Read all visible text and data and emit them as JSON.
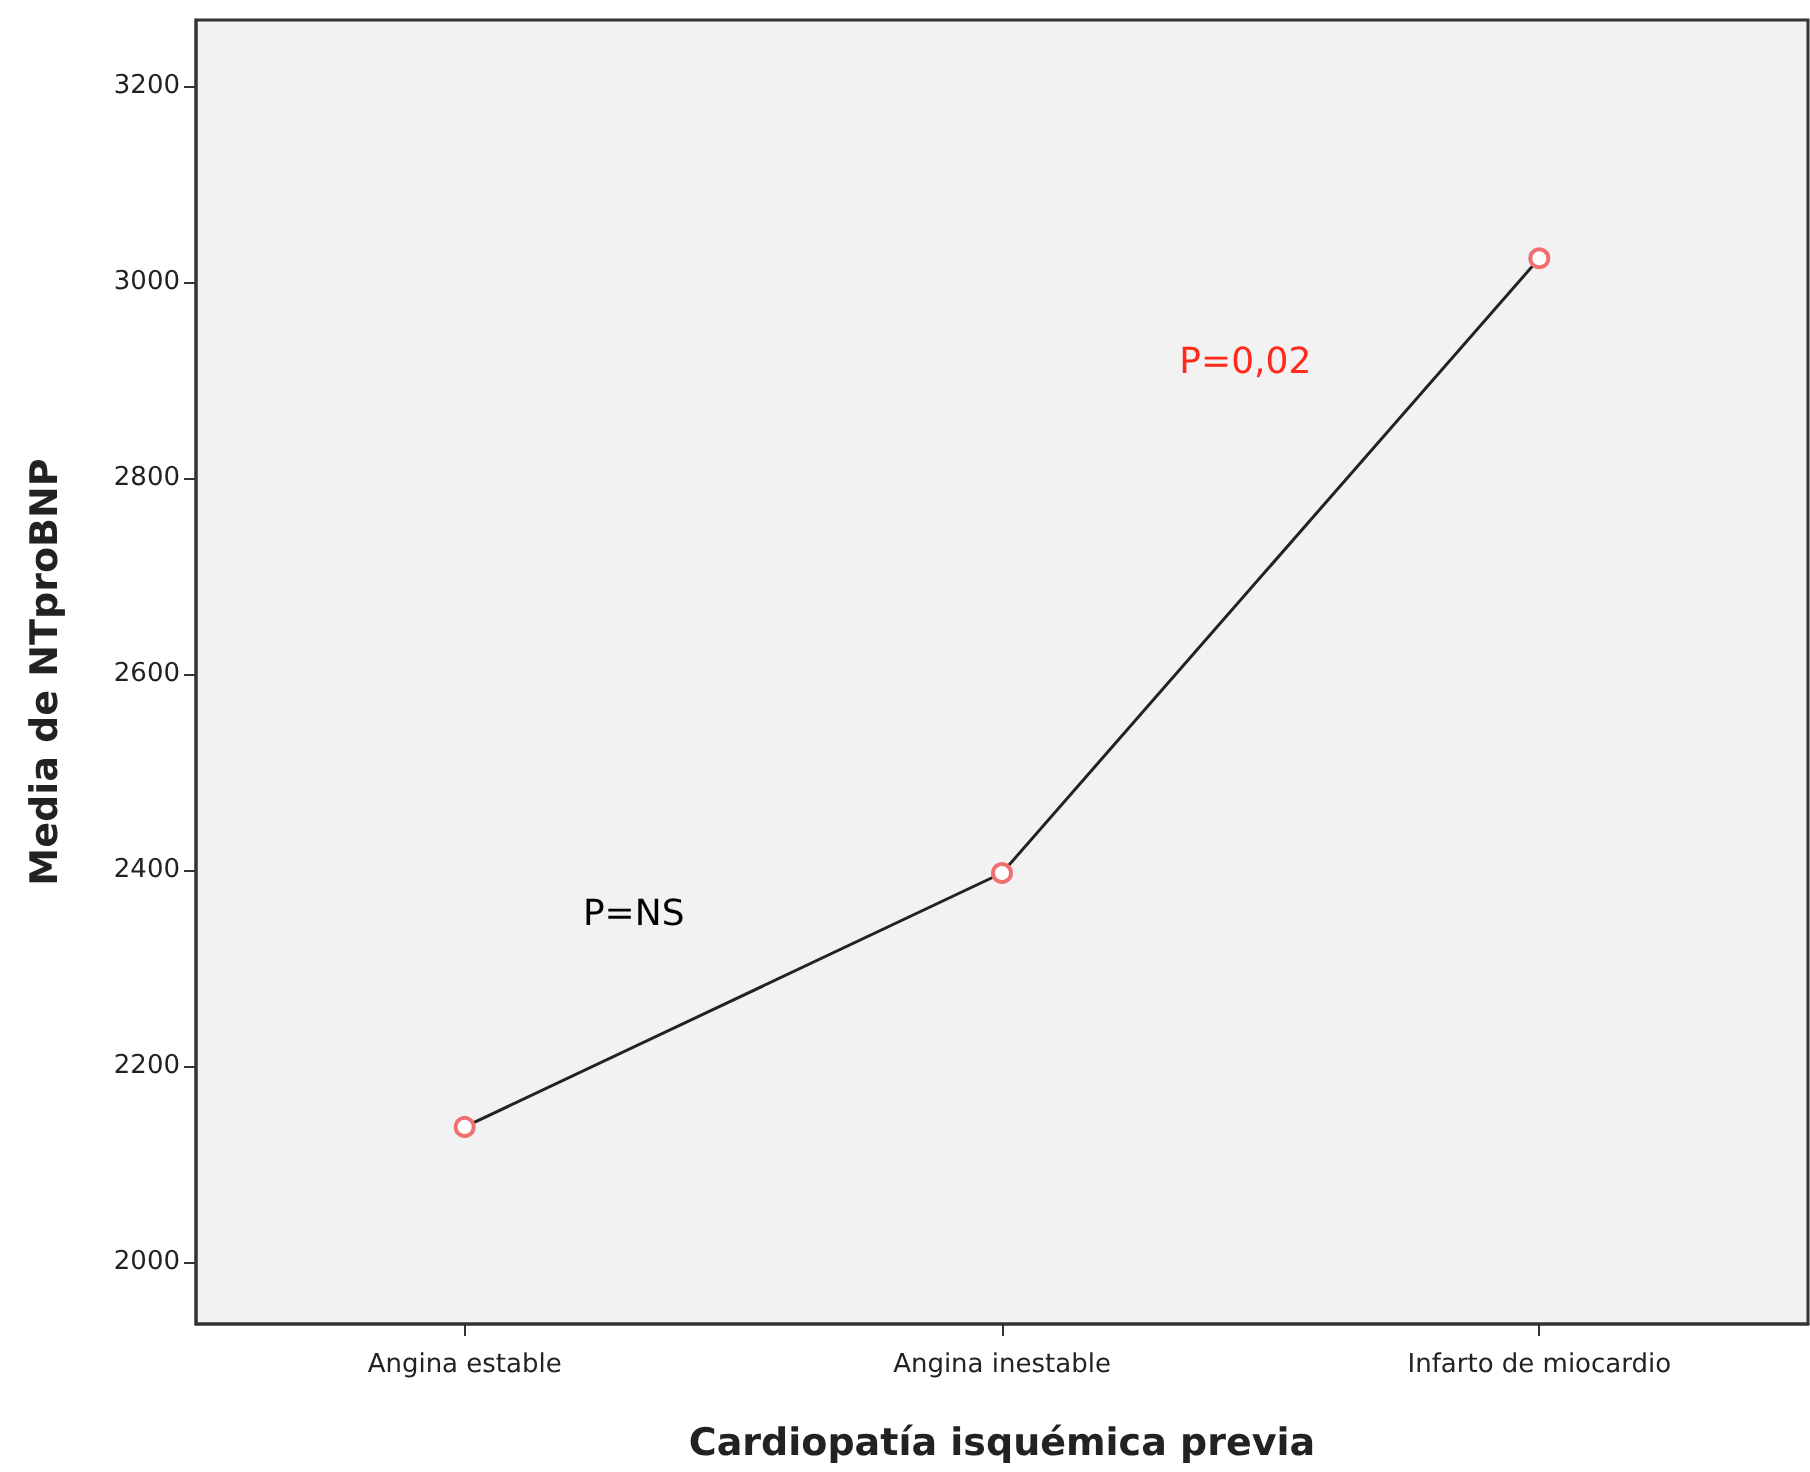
{
  "chart_data": {
    "type": "line",
    "xlabel": "Cardiopatía isquémica previa",
    "ylabel": "Media de NTproBNP",
    "categories": [
      "Angina estable",
      "Angina inestable",
      "Infarto de miocardio"
    ],
    "series": [
      {
        "color": "#222222",
        "colors": [
          "#f07070",
          "#f07070",
          "#f07070"
        ],
        "values": [
          2138,
          2397,
          3024
        ]
      }
    ],
    "ylim": [
      1937,
      3267
    ],
    "yticks": [
      2000,
      2200,
      2400,
      2600,
      2800,
      3000,
      3200
    ],
    "grid": false,
    "marker": "circle",
    "line_style": "solid",
    "annotations": [
      "P=NS",
      "P=0,02"
    ]
  }
}
